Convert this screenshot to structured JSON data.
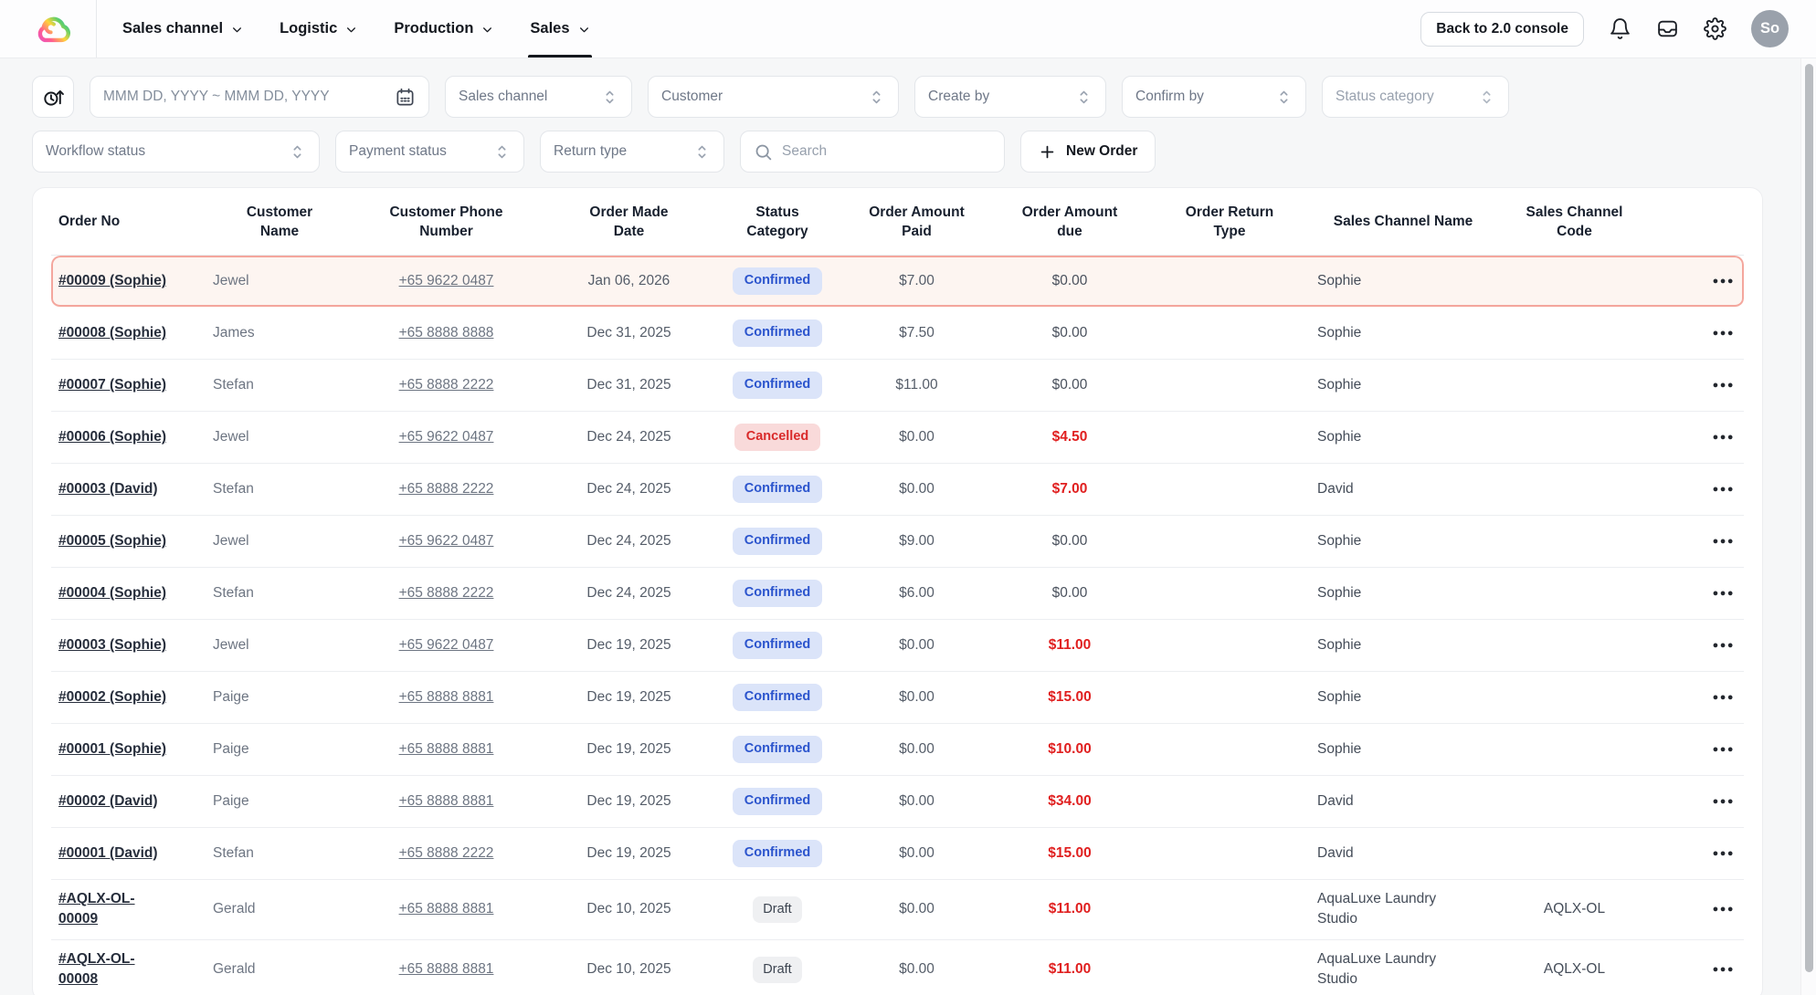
{
  "nav": {
    "menu": [
      {
        "label": "Sales channel",
        "active": false
      },
      {
        "label": "Logistic",
        "active": false
      },
      {
        "label": "Production",
        "active": false
      },
      {
        "label": "Sales",
        "active": true
      }
    ],
    "back_button_label": "Back to 2.0 console",
    "avatar_initials": "So"
  },
  "filters": {
    "date_range_placeholder": "MMM DD, YYYY ~ MMM DD, YYYY",
    "row1_selects": [
      "Sales channel",
      "Customer",
      "Create by",
      "Confirm by",
      "Status category"
    ],
    "row2_selects": [
      "Workflow status",
      "Payment status",
      "Return type"
    ],
    "search_placeholder": "Search",
    "new_order_label": "New Order"
  },
  "table": {
    "columns": [
      "Order No",
      "Customer Name",
      "Customer Phone Number",
      "Order Made Date",
      "Status Category",
      "Order Amount Paid",
      "Order Amount due",
      "Order Return Type",
      "Sales Channel Name",
      "Sales Channel Code"
    ],
    "rows": [
      {
        "order_no": "#00009 (Sophie)",
        "customer": "Jewel",
        "phone": "+65 9622 0487",
        "date": "Jan 06, 2026",
        "status": "Confirmed",
        "paid": "$7.00",
        "due": "$0.00",
        "due_red": false,
        "return_type": "",
        "channel_name": "Sophie",
        "channel_code": "",
        "selected": true
      },
      {
        "order_no": "#00008 (Sophie)",
        "customer": "James",
        "phone": "+65 8888 8888",
        "date": "Dec 31, 2025",
        "status": "Confirmed",
        "paid": "$7.50",
        "due": "$0.00",
        "due_red": false,
        "return_type": "",
        "channel_name": "Sophie",
        "channel_code": "",
        "selected": false
      },
      {
        "order_no": "#00007 (Sophie)",
        "customer": "Stefan",
        "phone": "+65 8888 2222",
        "date": "Dec 31, 2025",
        "status": "Confirmed",
        "paid": "$11.00",
        "due": "$0.00",
        "due_red": false,
        "return_type": "",
        "channel_name": "Sophie",
        "channel_code": "",
        "selected": false
      },
      {
        "order_no": "#00006 (Sophie)",
        "customer": "Jewel",
        "phone": "+65 9622 0487",
        "date": "Dec 24, 2025",
        "status": "Cancelled",
        "paid": "$0.00",
        "due": "$4.50",
        "due_red": true,
        "return_type": "",
        "channel_name": "Sophie",
        "channel_code": "",
        "selected": false
      },
      {
        "order_no": "#00003 (David)",
        "customer": "Stefan",
        "phone": "+65 8888 2222",
        "date": "Dec 24, 2025",
        "status": "Confirmed",
        "paid": "$0.00",
        "due": "$7.00",
        "due_red": true,
        "return_type": "",
        "channel_name": "David",
        "channel_code": "",
        "selected": false
      },
      {
        "order_no": "#00005 (Sophie)",
        "customer": "Jewel",
        "phone": "+65 9622 0487",
        "date": "Dec 24, 2025",
        "status": "Confirmed",
        "paid": "$9.00",
        "due": "$0.00",
        "due_red": false,
        "return_type": "",
        "channel_name": "Sophie",
        "channel_code": "",
        "selected": false
      },
      {
        "order_no": "#00004 (Sophie)",
        "customer": "Stefan",
        "phone": "+65 8888 2222",
        "date": "Dec 24, 2025",
        "status": "Confirmed",
        "paid": "$6.00",
        "due": "$0.00",
        "due_red": false,
        "return_type": "",
        "channel_name": "Sophie",
        "channel_code": "",
        "selected": false
      },
      {
        "order_no": "#00003 (Sophie)",
        "customer": "Jewel",
        "phone": "+65 9622 0487",
        "date": "Dec 19, 2025",
        "status": "Confirmed",
        "paid": "$0.00",
        "due": "$11.00",
        "due_red": true,
        "return_type": "",
        "channel_name": "Sophie",
        "channel_code": "",
        "selected": false
      },
      {
        "order_no": "#00002 (Sophie)",
        "customer": "Paige",
        "phone": "+65 8888 8881",
        "date": "Dec 19, 2025",
        "status": "Confirmed",
        "paid": "$0.00",
        "due": "$15.00",
        "due_red": true,
        "return_type": "",
        "channel_name": "Sophie",
        "channel_code": "",
        "selected": false
      },
      {
        "order_no": "#00001 (Sophie)",
        "customer": "Paige",
        "phone": "+65 8888 8881",
        "date": "Dec 19, 2025",
        "status": "Confirmed",
        "paid": "$0.00",
        "due": "$10.00",
        "due_red": true,
        "return_type": "",
        "channel_name": "Sophie",
        "channel_code": "",
        "selected": false
      },
      {
        "order_no": "#00002 (David)",
        "customer": "Paige",
        "phone": "+65 8888 8881",
        "date": "Dec 19, 2025",
        "status": "Confirmed",
        "paid": "$0.00",
        "due": "$34.00",
        "due_red": true,
        "return_type": "",
        "channel_name": "David",
        "channel_code": "",
        "selected": false
      },
      {
        "order_no": "#00001 (David)",
        "customer": "Stefan",
        "phone": "+65 8888 2222",
        "date": "Dec 19, 2025",
        "status": "Confirmed",
        "paid": "$0.00",
        "due": "$15.00",
        "due_red": true,
        "return_type": "",
        "channel_name": "David",
        "channel_code": "",
        "selected": false
      },
      {
        "order_no": "#AQLX-OL-00009",
        "customer": "Gerald",
        "phone": "+65 8888 8881",
        "date": "Dec 10, 2025",
        "status": "Draft",
        "paid": "$0.00",
        "due": "$11.00",
        "due_red": true,
        "return_type": "",
        "channel_name": "AquaLuxe Laundry Studio",
        "channel_code": "AQLX-OL",
        "selected": false
      },
      {
        "order_no": "#AQLX-OL-00008",
        "customer": "Gerald",
        "phone": "+65 8888 8881",
        "date": "Dec 10, 2025",
        "status": "Draft",
        "paid": "$0.00",
        "due": "$11.00",
        "due_red": true,
        "return_type": "",
        "channel_name": "AquaLuxe Laundry Studio",
        "channel_code": "AQLX-OL",
        "selected": false
      }
    ]
  },
  "colors": {
    "confirmed_bg": "#dbe4f9",
    "confirmed_text": "#2b54cd",
    "cancelled_bg": "#f9dada",
    "cancelled_text": "#d92a2a",
    "draft_bg": "#eff0f2",
    "draft_text": "#3c4450",
    "due_overdue_text": "#e01f1f",
    "selected_row_border": "#f4a69d",
    "selected_row_bg": "#fdf5f1"
  }
}
